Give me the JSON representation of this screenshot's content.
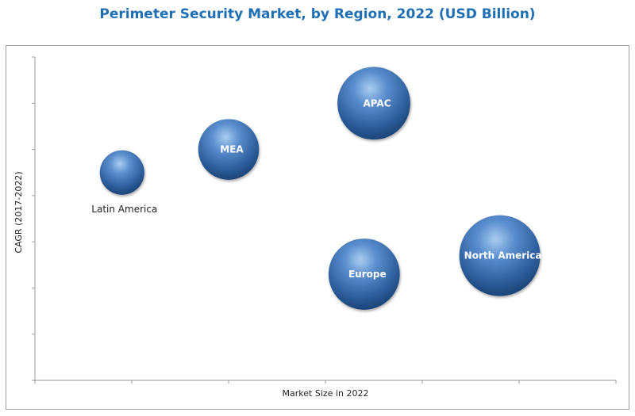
{
  "chart_data": {
    "type": "scatter",
    "title": "Perimeter Security Market, by Region, 2022 (USD Billion)",
    "xlabel": "Market Size in 2022",
    "ylabel": "CAGR (2017-2022)",
    "grid": false,
    "legend": "none",
    "bubble_color": "#3f73b0",
    "x_ticks": 6,
    "y_ticks": 7,
    "points": [
      {
        "label": "Latin America",
        "x": 0.9,
        "y": 4.5,
        "size": 0.55,
        "label_outside": true
      },
      {
        "label": "MEA",
        "x": 2.0,
        "y": 5.0,
        "size": 0.75,
        "label_outside": false
      },
      {
        "label": "APAC",
        "x": 3.5,
        "y": 6.0,
        "size": 0.9,
        "label_outside": false
      },
      {
        "label": "Europe",
        "x": 3.4,
        "y": 2.3,
        "size": 0.88,
        "label_outside": false
      },
      {
        "label": "North America",
        "x": 4.8,
        "y": 2.7,
        "size": 1.0,
        "label_outside": false
      }
    ]
  }
}
